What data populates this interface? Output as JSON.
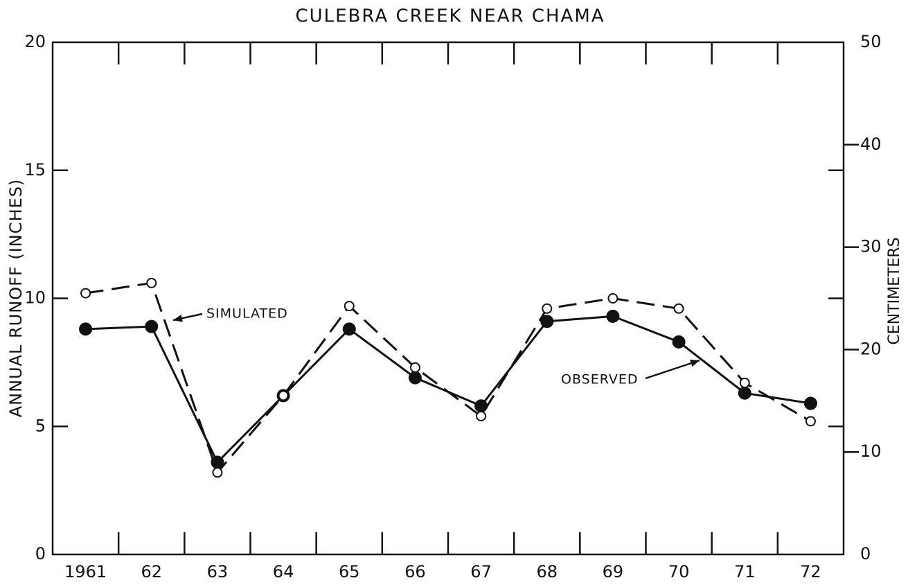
{
  "chart_data": {
    "type": "line",
    "title": "CULEBRA CREEK NEAR CHAMA",
    "y_label": "ANNUAL RUNOFF (INCHES)",
    "y2_label": "CENTIMETERS",
    "categories": [
      "1961",
      "62",
      "63",
      "64",
      "65",
      "66",
      "67",
      "68",
      "69",
      "70",
      "71",
      "72"
    ],
    "series": [
      {
        "name": "OBSERVED",
        "color": "#111111",
        "marker": "filled",
        "dashed": false,
        "values": [
          8.8,
          8.9,
          3.6,
          6.2,
          8.8,
          6.9,
          5.8,
          9.1,
          9.3,
          8.3,
          6.3,
          5.9
        ]
      },
      {
        "name": "SIMULATED",
        "color": "#111111",
        "marker": "open",
        "dashed": true,
        "values": [
          10.2,
          10.6,
          3.2,
          6.2,
          9.7,
          7.3,
          5.4,
          9.6,
          10.0,
          9.6,
          6.7,
          5.2
        ]
      }
    ],
    "ylim": [
      0,
      20
    ],
    "yticks": [
      0,
      5,
      10,
      15,
      20
    ],
    "y2lim": [
      0,
      50
    ],
    "y2ticks": [
      0,
      10,
      20,
      30,
      40,
      50
    ],
    "grid": false
  }
}
